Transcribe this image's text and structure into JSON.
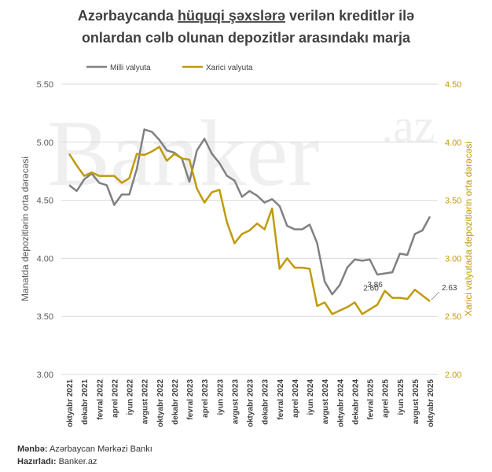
{
  "chart_data": {
    "type": "line",
    "title": {
      "start": "Azərbaycanda",
      "underlined": "hüquqi şəxslərə",
      "end": "verilən kreditlər ilə",
      "line2": "onlardan cəlb olunan depozitlər arasındakı  marja"
    },
    "watermark": [
      "Banker",
      ".az"
    ],
    "y_label": "Manatda depozitlərin orta dərəcəsi",
    "y2_label": "Xarici valyutada depozitlərin orta dərəcəsi",
    "source_label": "Mənbə:",
    "source": "Azərbaycan Mərkəzi Bankı",
    "author_label": "Hazırladı:",
    "author": "Banker.az",
    "categories": [
      "oktyabr 2021",
      null,
      "dekabr 2021",
      null,
      "fevral 2022",
      null,
      "aprel 2022",
      null,
      "iyun 2022",
      null,
      "avgust 2022",
      null,
      "oktyabr 2022",
      null,
      "dekabr 2022",
      null,
      "fevral 2023",
      null,
      "aprel 2023",
      null,
      "iyun 2023",
      null,
      "avgust 2023",
      null,
      "oktyabr 2023",
      null,
      "dekabr 2023",
      null,
      "fevral 2024",
      null,
      "aprel 2024",
      null,
      "iyun 2024",
      null,
      "avgust 2024",
      null,
      "oktyabr 2024",
      null,
      "dekabr 2024",
      null,
      "fevral 2025",
      null,
      "aprel 2025",
      null,
      "iyun 2025",
      null,
      "avgust 2025",
      null,
      "oktyabr 2025"
    ],
    "series": [
      {
        "name": "Milli valyuta",
        "color": "#808080",
        "axis": "y",
        "values": [
          4.63,
          4.58,
          4.68,
          4.73,
          4.65,
          4.63,
          4.46,
          4.55,
          4.55,
          4.77,
          5.11,
          5.09,
          5.02,
          4.93,
          4.91,
          4.86,
          4.66,
          4.93,
          5.03,
          4.9,
          4.82,
          4.71,
          4.67,
          4.53,
          4.58,
          4.54,
          4.48,
          4.51,
          4.45,
          4.28,
          4.25,
          4.25,
          4.29,
          4.13,
          3.8,
          3.69,
          3.77,
          3.92,
          3.99,
          3.98,
          3.99,
          3.86,
          3.87,
          3.88,
          4.04,
          4.03,
          4.21,
          4.24,
          4.36
        ],
        "value_labels": [
          null,
          null,
          null,
          null,
          null,
          null,
          null,
          null,
          null,
          null,
          null,
          null,
          null,
          null,
          null,
          null,
          null,
          null,
          null,
          null,
          null,
          null,
          null,
          null,
          null,
          null,
          null,
          null,
          null,
          null,
          null,
          null,
          null,
          null,
          null,
          null,
          null,
          null,
          null,
          null,
          null,
          "3.86",
          null,
          null,
          null,
          null,
          null,
          null,
          null
        ]
      },
      {
        "name": "Xarici valyuta",
        "color": "#c09a0a",
        "axis": "y2",
        "values": [
          3.9,
          3.8,
          3.71,
          3.74,
          3.71,
          3.71,
          3.71,
          3.65,
          3.69,
          3.9,
          3.89,
          3.92,
          3.96,
          3.84,
          3.9,
          3.86,
          3.85,
          3.6,
          3.48,
          3.57,
          3.59,
          3.31,
          3.13,
          3.21,
          3.24,
          3.3,
          3.25,
          3.43,
          2.91,
          3.0,
          2.92,
          2.92,
          2.91,
          2.59,
          2.62,
          2.52,
          2.55,
          2.58,
          2.62,
          2.52,
          2.56,
          2.6,
          2.72,
          2.66,
          2.66,
          2.65,
          2.73,
          2.68,
          2.63
        ],
        "value_labels": [
          null,
          null,
          null,
          null,
          null,
          null,
          null,
          null,
          null,
          null,
          null,
          null,
          null,
          null,
          null,
          null,
          null,
          null,
          null,
          null,
          null,
          null,
          null,
          null,
          null,
          null,
          null,
          null,
          null,
          null,
          null,
          null,
          null,
          null,
          null,
          null,
          null,
          null,
          null,
          null,
          null,
          "2.60",
          null,
          null,
          null,
          null,
          null,
          null,
          "2.63"
        ]
      }
    ],
    "ylim": [
      3.0,
      5.5
    ],
    "yticks": [
      {
        "value": 3.0,
        "label": "3.00"
      },
      {
        "value": 3.5,
        "label": "3.50"
      },
      {
        "value": 4.0,
        "label": "4.00"
      },
      {
        "value": 4.5,
        "label": "4.50"
      },
      {
        "value": 5.0,
        "label": "5.00"
      },
      {
        "value": 5.5,
        "label": "5.50"
      }
    ],
    "y2lim": [
      2.0,
      4.5
    ],
    "y2ticks": [
      {
        "value": 2.0,
        "label": "2.00"
      },
      {
        "value": 2.5,
        "label": "2.50"
      },
      {
        "value": 3.0,
        "label": "3.00"
      },
      {
        "value": 3.5,
        "label": "3.50"
      },
      {
        "value": 4.0,
        "label": "4.00"
      },
      {
        "value": 4.5,
        "label": "4.50"
      }
    ],
    "grid": true
  }
}
